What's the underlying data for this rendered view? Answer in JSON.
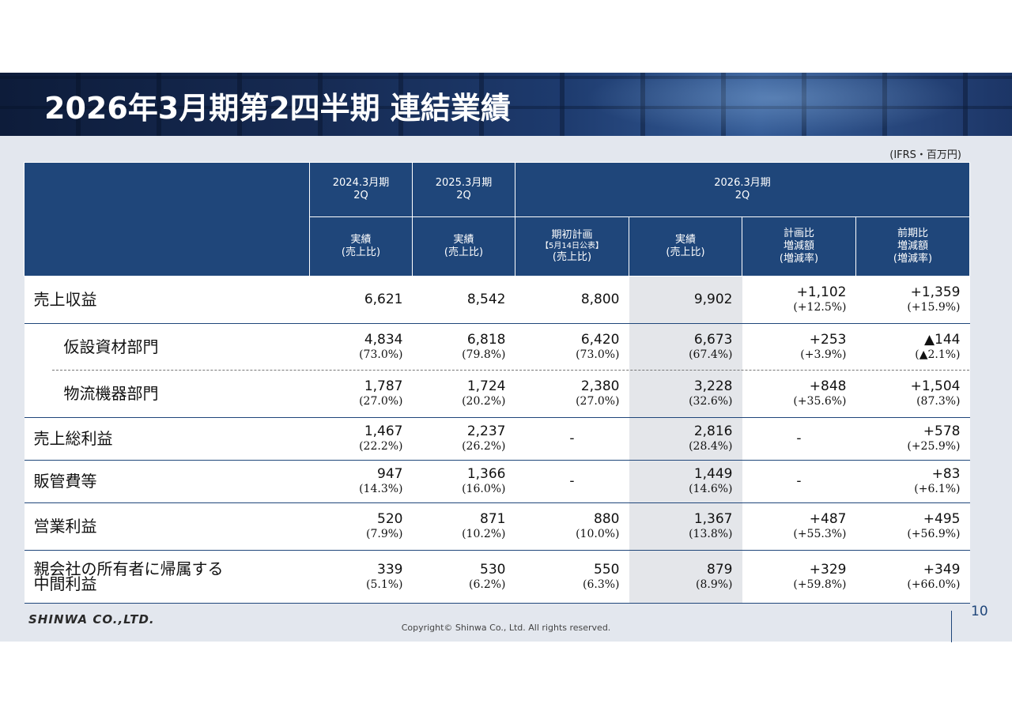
{
  "slide": {
    "title": "2026年3月期第2四半期 連結業績",
    "unit_note": "(IFRS・百万円)",
    "logo_text": "SHINWA CO.,LTD.",
    "copyright": "Copyright© Shinwa Co., Ltd. All rights reserved.",
    "page_number": "10"
  },
  "header": {
    "fy2024": {
      "line1": "2024.3月期",
      "line2": "2Q"
    },
    "fy2025": {
      "line1": "2025.3月期",
      "line2": "2Q"
    },
    "fy2026": {
      "line1": "2026.3月期",
      "line2": "2Q"
    },
    "col_actual_2024": {
      "line1": "実績",
      "line2": "(売上比)"
    },
    "col_actual_2025": {
      "line1": "実績",
      "line2": "(売上比)"
    },
    "col_plan": {
      "line1": "期初計画",
      "line2": "【5月14日公表】",
      "line3": "(売上比)"
    },
    "col_actual_2026": {
      "line1": "実績",
      "line2": "(売上比)"
    },
    "col_vs_plan": {
      "line1": "計画比",
      "line2": "増減額",
      "line3": "(増減率)"
    },
    "col_vs_prev": {
      "line1": "前期比",
      "line2": "増減額",
      "line3": "(増減率)"
    }
  },
  "rows": {
    "sales": {
      "label": "売上収益",
      "a2024": "6,621",
      "a2025": "8,542",
      "plan": "8,800",
      "a2026": "9,902",
      "vs_plan": "+1,102",
      "vs_plan_pct": "(+12.5%)",
      "vs_prev": "+1,359",
      "vs_prev_pct": "(+15.9%)"
    },
    "seg1": {
      "label": "仮設資材部門",
      "a2024": "4,834",
      "a2024_pct": "(73.0%)",
      "a2025": "6,818",
      "a2025_pct": "(79.8%)",
      "plan": "6,420",
      "plan_pct": "(73.0%)",
      "a2026": "6,673",
      "a2026_pct": "(67.4%)",
      "vs_plan": "+253",
      "vs_plan_pct": "(+3.9%)",
      "vs_prev": "▲144",
      "vs_prev_pct": "(▲2.1%)"
    },
    "seg2": {
      "label": "物流機器部門",
      "a2024": "1,787",
      "a2024_pct": "(27.0%)",
      "a2025": "1,724",
      "a2025_pct": "(20.2%)",
      "plan": "2,380",
      "plan_pct": "(27.0%)",
      "a2026": "3,228",
      "a2026_pct": "(32.6%)",
      "vs_plan": "+848",
      "vs_plan_pct": "(+35.6%)",
      "vs_prev": "+1,504",
      "vs_prev_pct": "(87.3%)"
    },
    "gross": {
      "label": "売上総利益",
      "a2024": "1,467",
      "a2024_pct": "(22.2%)",
      "a2025": "2,237",
      "a2025_pct": "(26.2%)",
      "plan": "-",
      "a2026": "2,816",
      "a2026_pct": "(28.4%)",
      "vs_plan": "-",
      "vs_prev": "+578",
      "vs_prev_pct": "(+25.9%)"
    },
    "sga": {
      "label": "販管費等",
      "a2024": "947",
      "a2024_pct": "(14.3%)",
      "a2025": "1,366",
      "a2025_pct": "(16.0%)",
      "plan": "-",
      "a2026": "1,449",
      "a2026_pct": "(14.6%)",
      "vs_plan": "-",
      "vs_prev": "+83",
      "vs_prev_pct": "(+6.1%)"
    },
    "op": {
      "label": "営業利益",
      "a2024": "520",
      "a2024_pct": "(7.9%)",
      "a2025": "871",
      "a2025_pct": "(10.2%)",
      "plan": "880",
      "plan_pct": "(10.0%)",
      "a2026": "1,367",
      "a2026_pct": "(13.8%)",
      "vs_plan": "+487",
      "vs_plan_pct": "(+55.3%)",
      "vs_prev": "+495",
      "vs_prev_pct": "(+56.9%)"
    },
    "net": {
      "label1": "親会社の所有者に帰属する",
      "label2": "中間利益",
      "a2024": "339",
      "a2024_pct": "(5.1%)",
      "a2025": "530",
      "a2025_pct": "(6.2%)",
      "plan": "550",
      "plan_pct": "(6.3%)",
      "a2026": "879",
      "a2026_pct": "(8.9%)",
      "vs_plan": "+329",
      "vs_plan_pct": "(+59.8%)",
      "vs_prev": "+349",
      "vs_prev_pct": "(+66.0%)"
    }
  }
}
